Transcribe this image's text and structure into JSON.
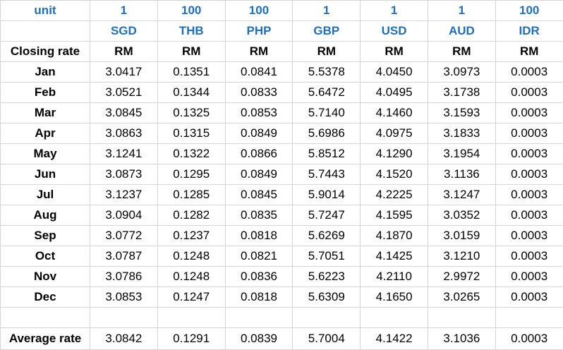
{
  "table": {
    "unit_label": "unit",
    "units": [
      "1",
      "100",
      "100",
      "1",
      "1",
      "1",
      "100"
    ],
    "codes": [
      "SGD",
      "THB",
      "PHP",
      "GBP",
      "USD",
      "AUD",
      "IDR"
    ],
    "closing_label": "Closing rate",
    "currency_symbols": [
      "RM",
      "RM",
      "RM",
      "RM",
      "RM",
      "RM",
      "RM"
    ],
    "rows": [
      {
        "month": "Jan",
        "values": [
          "3.0417",
          "0.1351",
          "0.0841",
          "5.5378",
          "4.0450",
          "3.0973",
          "0.0003"
        ]
      },
      {
        "month": "Feb",
        "values": [
          "3.0521",
          "0.1344",
          "0.0833",
          "5.6472",
          "4.0495",
          "3.1738",
          "0.0003"
        ]
      },
      {
        "month": "Mar",
        "values": [
          "3.0845",
          "0.1325",
          "0.0853",
          "5.7140",
          "4.1460",
          "3.1593",
          "0.0003"
        ]
      },
      {
        "month": "Apr",
        "values": [
          "3.0863",
          "0.1315",
          "0.0849",
          "5.6986",
          "4.0975",
          "3.1833",
          "0.0003"
        ]
      },
      {
        "month": "May",
        "values": [
          "3.1241",
          "0.1322",
          "0.0866",
          "5.8512",
          "4.1290",
          "3.1954",
          "0.0003"
        ]
      },
      {
        "month": "Jun",
        "values": [
          "3.0873",
          "0.1295",
          "0.0849",
          "5.7443",
          "4.1520",
          "3.1136",
          "0.0003"
        ]
      },
      {
        "month": "Jul",
        "values": [
          "3.1237",
          "0.1285",
          "0.0845",
          "5.9014",
          "4.2225",
          "3.1247",
          "0.0003"
        ]
      },
      {
        "month": "Aug",
        "values": [
          "3.0904",
          "0.1282",
          "0.0835",
          "5.7247",
          "4.1595",
          "3.0352",
          "0.0003"
        ]
      },
      {
        "month": "Sep",
        "values": [
          "3.0772",
          "0.1237",
          "0.0818",
          "5.6269",
          "4.1870",
          "3.0159",
          "0.0003"
        ]
      },
      {
        "month": "Oct",
        "values": [
          "3.0787",
          "0.1248",
          "0.0821",
          "5.7051",
          "4.1425",
          "3.1210",
          "0.0003"
        ]
      },
      {
        "month": "Nov",
        "values": [
          "3.0786",
          "0.1248",
          "0.0836",
          "5.6223",
          "4.2110",
          "2.9972",
          "0.0003"
        ]
      },
      {
        "month": "Dec",
        "values": [
          "3.0853",
          "0.1247",
          "0.0818",
          "5.6309",
          "4.1650",
          "3.0265",
          "0.0003"
        ]
      }
    ],
    "average_label": "Average rate",
    "average_values": [
      "3.0842",
      "0.1291",
      "0.0839",
      "5.7004",
      "4.1422",
      "3.1036",
      "0.0003"
    ]
  },
  "colors": {
    "header_blue": "#1f6fbd",
    "gridline": "#d4d4d4"
  }
}
